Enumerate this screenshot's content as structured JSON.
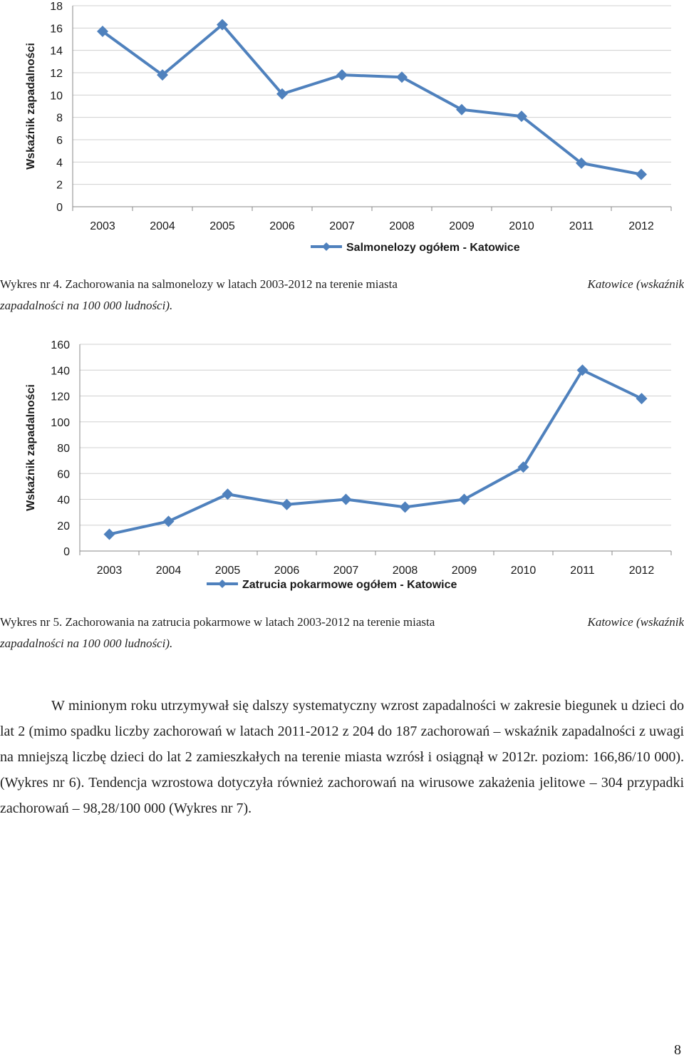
{
  "charts": [
    {
      "type": "line",
      "categories": [
        "2003",
        "2004",
        "2005",
        "2006",
        "2007",
        "2008",
        "2009",
        "2010",
        "2011",
        "2012"
      ],
      "series": [
        {
          "name": "Salmonelozy ogółem - Katowice",
          "values": [
            15.7,
            11.8,
            16.3,
            10.1,
            11.8,
            11.6,
            8.7,
            8.1,
            3.9,
            2.9
          ],
          "color": "#4F81BD"
        }
      ],
      "ylabel": "Wskaźnik zapadalności",
      "ylim": [
        0,
        18
      ],
      "yticks": [
        "0",
        "2",
        "4",
        "6",
        "8",
        "10",
        "12",
        "14",
        "16",
        "18"
      ],
      "grid": true,
      "legend_position": "bottom"
    },
    {
      "type": "line",
      "categories": [
        "2003",
        "2004",
        "2005",
        "2006",
        "2007",
        "2008",
        "2009",
        "2010",
        "2011",
        "2012"
      ],
      "series": [
        {
          "name": "Zatrucia pokarmowe ogółem - Katowice",
          "values": [
            13,
            23,
            44,
            36,
            40,
            34,
            40,
            65,
            140,
            118
          ],
          "color": "#4F81BD"
        }
      ],
      "ylabel": "Wskaźnik zapadalności",
      "ylim": [
        0,
        160
      ],
      "yticks": [
        "0",
        "20",
        "40",
        "60",
        "80",
        "100",
        "120",
        "140",
        "160"
      ],
      "grid": true,
      "legend_position": "bottom"
    }
  ],
  "chart_data": [
    {
      "type": "line",
      "categories": [
        "2003",
        "2004",
        "2005",
        "2006",
        "2007",
        "2008",
        "2009",
        "2010",
        "2011",
        "2012"
      ],
      "series": [
        {
          "name": "Salmonelozy ogółem - Katowice",
          "values": [
            15.7,
            11.8,
            16.3,
            10.1,
            11.8,
            11.6,
            8.7,
            8.1,
            3.9,
            2.9
          ]
        }
      ],
      "ylabel": "Wskaźnik zapadalności",
      "ylim": [
        0,
        18
      ]
    },
    {
      "type": "line",
      "categories": [
        "2003",
        "2004",
        "2005",
        "2006",
        "2007",
        "2008",
        "2009",
        "2010",
        "2011",
        "2012"
      ],
      "series": [
        {
          "name": "Zatrucia pokarmowe ogółem - Katowice",
          "values": [
            13,
            23,
            44,
            36,
            40,
            34,
            40,
            65,
            140,
            118
          ]
        }
      ],
      "ylabel": "Wskaźnik zapadalności",
      "ylim": [
        0,
        160
      ]
    }
  ],
  "captions": {
    "c1": {
      "left": "Wykres nr 4. Zachorowania na salmonelozy w latach 2003-2012 na terenie miasta",
      "right": "Katowice (wskaźnik",
      "line2": "zapadalności na 100 000 ludności)."
    },
    "c2": {
      "left": "Wykres nr 5. Zachorowania na zatrucia pokarmowe w latach 2003-2012 na terenie miasta",
      "right": "Katowice (wskaźnik",
      "line2": "zapadalności na 100 000 ludności)."
    }
  },
  "paragraph": "W minionym roku utrzymywał się dalszy systematyczny wzrost zapadalności w zakresie biegunek u dzieci do lat 2 (mimo spadku liczby zachorowań w latach 2011-2012 z 204 do 187 zachorowań – wskaźnik zapadalności z uwagi na mniejszą liczbę dzieci do lat 2 zamieszkałych na terenie miasta wzrósł i osiągnął w 2012r. poziom: 166,86/10 000). (Wykres nr 6). Tendencja wzrostowa dotyczyła również zachorowań na wirusowe zakażenia jelitowe – 304 przypadki zachorowań – 98,28/100 000 (Wykres nr 7).",
  "page_number": "8"
}
